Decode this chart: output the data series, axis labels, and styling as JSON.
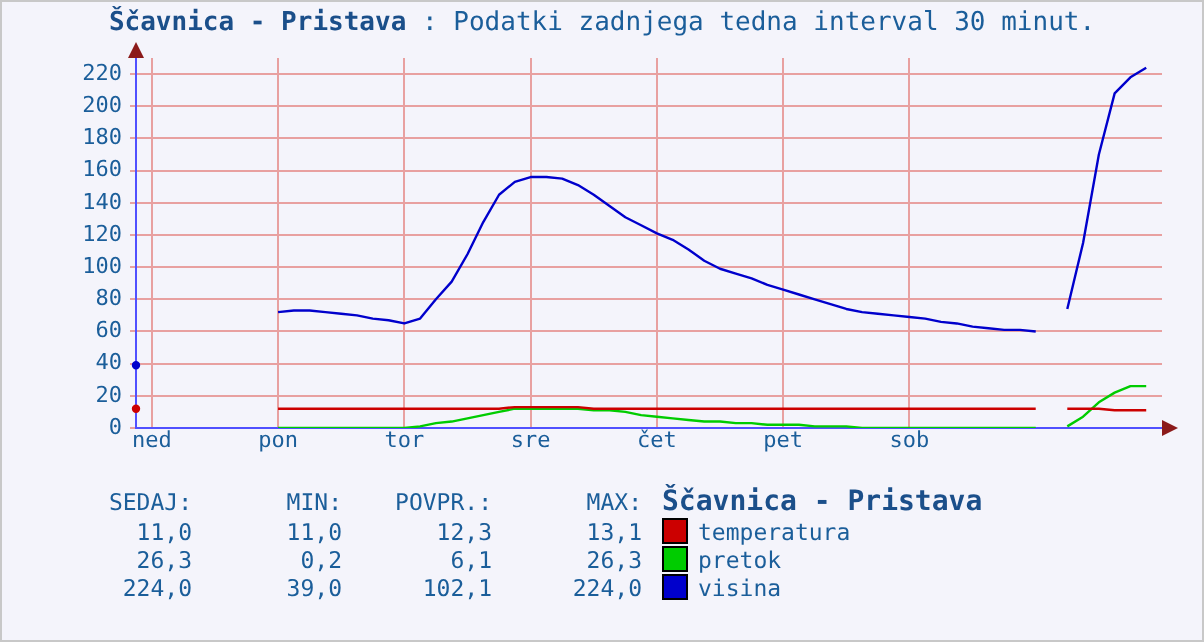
{
  "chart_data": {
    "type": "line",
    "title": "Ščavnica - Pristava",
    "subtitle": ": Podatki zadnjega tedna interval 30 minut.",
    "legend_title": "Ščavnica - Pristava",
    "legend": "bottom",
    "grid": true,
    "marker": "none",
    "line_style": "solid",
    "categories": [
      null,
      "ned",
      null,
      null,
      null,
      null,
      null,
      null,
      null,
      "pon",
      null,
      null,
      null,
      null,
      null,
      null,
      null,
      "tor",
      null,
      null,
      null,
      null,
      null,
      null,
      null,
      "sre",
      null,
      null,
      null,
      null,
      null,
      null,
      null,
      "čet",
      null,
      null,
      null,
      null,
      null,
      null,
      null,
      "pet",
      null,
      null,
      null,
      null,
      null,
      null,
      null,
      "sob",
      null,
      null,
      null,
      null,
      null,
      null,
      null,
      null,
      null,
      null,
      null,
      null,
      null,
      null,
      null,
      null
    ],
    "ylim": [
      0,
      230
    ],
    "yticks": [
      0,
      20,
      40,
      60,
      80,
      100,
      120,
      140,
      160,
      180,
      200,
      220
    ],
    "annotations": [
      "SEDAJ:",
      "MIN:",
      "POVPR.:",
      "MAX:",
      "11,0",
      "11,0",
      "12,3",
      "13,1",
      "26,3",
      "0,2",
      "6,1",
      "26,3",
      "224,0",
      "39,0",
      "102,1",
      "224,0"
    ],
    "series": [
      {
        "name": "temperatura",
        "color": "#cc0000",
        "values": [
          12,
          null,
          null,
          null,
          null,
          null,
          null,
          null,
          null,
          12,
          12,
          12,
          12,
          12,
          12,
          12,
          12,
          12,
          12,
          12,
          12,
          12,
          12,
          12,
          13,
          13,
          13,
          13,
          13,
          12,
          12,
          12,
          12,
          12,
          12,
          12,
          12,
          12,
          12,
          12,
          12,
          12,
          12,
          12,
          12,
          12,
          12,
          12,
          12,
          12,
          12,
          12,
          12,
          12,
          12,
          12,
          12,
          12,
          null,
          12,
          12,
          12,
          11,
          11,
          11,
          null
        ]
      },
      {
        "name": "pretok",
        "color": "#00cc00",
        "values": [
          null,
          null,
          null,
          null,
          null,
          null,
          null,
          null,
          null,
          0,
          0,
          0,
          0,
          0,
          0,
          0,
          0,
          0,
          1,
          3,
          4,
          6,
          8,
          10,
          12,
          12,
          12,
          12,
          12,
          11,
          11,
          10,
          8,
          7,
          6,
          5,
          4,
          4,
          3,
          3,
          2,
          2,
          2,
          1,
          1,
          1,
          0,
          0,
          0,
          0,
          0,
          0,
          0,
          0,
          0,
          0,
          0,
          0,
          null,
          1,
          7,
          16,
          22,
          26,
          26,
          null
        ]
      },
      {
        "name": "visina",
        "color": "#0000cc",
        "values": [
          39,
          null,
          null,
          null,
          null,
          null,
          null,
          null,
          null,
          72,
          73,
          73,
          72,
          71,
          70,
          68,
          67,
          65,
          68,
          80,
          91,
          108,
          128,
          145,
          153,
          156,
          156,
          155,
          151,
          145,
          138,
          131,
          126,
          121,
          117,
          111,
          104,
          99,
          96,
          93,
          89,
          86,
          83,
          80,
          77,
          74,
          72,
          71,
          70,
          69,
          68,
          66,
          65,
          63,
          62,
          61,
          61,
          60,
          null,
          74,
          115,
          170,
          208,
          218,
          224,
          null
        ]
      }
    ]
  }
}
